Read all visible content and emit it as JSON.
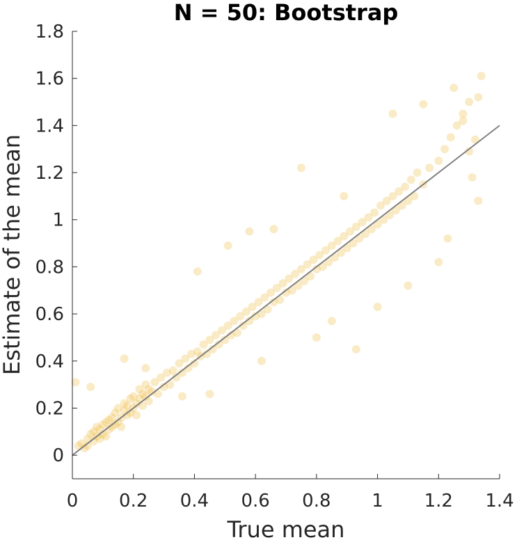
{
  "chart_data": {
    "type": "scatter",
    "title": "N = 50: Bootstrap",
    "xlabel": "True mean",
    "ylabel": "Estimate of the mean",
    "xlim": [
      0,
      1.4
    ],
    "ylim": [
      -0.1,
      1.8
    ],
    "xticks": [
      0,
      0.2,
      0.4,
      0.6,
      0.8,
      1,
      1.2,
      1.4
    ],
    "xtick_labels": [
      "0",
      "0.2",
      "0.4",
      "0.6",
      "0.8",
      "1",
      "1.2",
      "1.4"
    ],
    "yticks": [
      0,
      0.2,
      0.4,
      0.6,
      0.8,
      1,
      1.2,
      1.4,
      1.6,
      1.8
    ],
    "ytick_labels": [
      "0",
      "0.2",
      "0.4",
      "0.6",
      "0.8",
      "1",
      "1.2",
      "1.4",
      "1.6",
      "1.8"
    ],
    "grid": false,
    "point_color": "#EDB120",
    "point_opacity": 0.25,
    "reference_line": {
      "label": "identity y = x",
      "color": "#808080",
      "from": [
        0,
        0
      ],
      "to": [
        1.4,
        1.4
      ]
    },
    "series": [
      {
        "values": [
          [
            0.02,
            0.04
          ],
          [
            0.03,
            0.05
          ],
          [
            0.04,
            0.03
          ],
          [
            0.05,
            0.07
          ],
          [
            0.05,
            0.04
          ],
          [
            0.06,
            0.09
          ],
          [
            0.07,
            0.06
          ],
          [
            0.07,
            0.1
          ],
          [
            0.08,
            0.08
          ],
          [
            0.08,
            0.12
          ],
          [
            0.09,
            0.07
          ],
          [
            0.09,
            0.11
          ],
          [
            0.1,
            0.13
          ],
          [
            0.1,
            0.09
          ],
          [
            0.11,
            0.14
          ],
          [
            0.11,
            0.08
          ],
          [
            0.12,
            0.15
          ],
          [
            0.12,
            0.11
          ],
          [
            0.13,
            0.16
          ],
          [
            0.13,
            0.12
          ],
          [
            0.14,
            0.13
          ],
          [
            0.14,
            0.18
          ],
          [
            0.15,
            0.14
          ],
          [
            0.15,
            0.2
          ],
          [
            0.16,
            0.16
          ],
          [
            0.16,
            0.12
          ],
          [
            0.17,
            0.19
          ],
          [
            0.17,
            0.22
          ],
          [
            0.18,
            0.17
          ],
          [
            0.18,
            0.21
          ],
          [
            0.19,
            0.18
          ],
          [
            0.19,
            0.24
          ],
          [
            0.2,
            0.2
          ],
          [
            0.2,
            0.25
          ],
          [
            0.21,
            0.22
          ],
          [
            0.21,
            0.17
          ],
          [
            0.22,
            0.24
          ],
          [
            0.22,
            0.28
          ],
          [
            0.23,
            0.21
          ],
          [
            0.23,
            0.26
          ],
          [
            0.24,
            0.25
          ],
          [
            0.24,
            0.3
          ],
          [
            0.25,
            0.23
          ],
          [
            0.25,
            0.28
          ],
          [
            0.26,
            0.27
          ],
          [
            0.27,
            0.31
          ],
          [
            0.28,
            0.26
          ],
          [
            0.29,
            0.33
          ],
          [
            0.3,
            0.29
          ],
          [
            0.31,
            0.35
          ],
          [
            0.32,
            0.3
          ],
          [
            0.33,
            0.36
          ],
          [
            0.34,
            0.33
          ],
          [
            0.35,
            0.39
          ],
          [
            0.36,
            0.35
          ],
          [
            0.37,
            0.41
          ],
          [
            0.38,
            0.37
          ],
          [
            0.39,
            0.43
          ],
          [
            0.4,
            0.39
          ],
          [
            0.41,
            0.44
          ],
          [
            0.42,
            0.42
          ],
          [
            0.43,
            0.47
          ],
          [
            0.44,
            0.43
          ],
          [
            0.45,
            0.49
          ],
          [
            0.46,
            0.45
          ],
          [
            0.47,
            0.51
          ],
          [
            0.48,
            0.47
          ],
          [
            0.49,
            0.53
          ],
          [
            0.5,
            0.49
          ],
          [
            0.51,
            0.55
          ],
          [
            0.52,
            0.51
          ],
          [
            0.53,
            0.57
          ],
          [
            0.54,
            0.52
          ],
          [
            0.55,
            0.59
          ],
          [
            0.56,
            0.55
          ],
          [
            0.57,
            0.61
          ],
          [
            0.58,
            0.57
          ],
          [
            0.59,
            0.63
          ],
          [
            0.6,
            0.59
          ],
          [
            0.61,
            0.65
          ],
          [
            0.62,
            0.6
          ],
          [
            0.63,
            0.67
          ],
          [
            0.64,
            0.62
          ],
          [
            0.65,
            0.69
          ],
          [
            0.66,
            0.65
          ],
          [
            0.67,
            0.71
          ],
          [
            0.68,
            0.66
          ],
          [
            0.69,
            0.73
          ],
          [
            0.7,
            0.69
          ],
          [
            0.71,
            0.75
          ],
          [
            0.72,
            0.7
          ],
          [
            0.73,
            0.77
          ],
          [
            0.74,
            0.72
          ],
          [
            0.75,
            0.79
          ],
          [
            0.76,
            0.74
          ],
          [
            0.77,
            0.81
          ],
          [
            0.78,
            0.76
          ],
          [
            0.79,
            0.83
          ],
          [
            0.8,
            0.79
          ],
          [
            0.81,
            0.85
          ],
          [
            0.82,
            0.8
          ],
          [
            0.83,
            0.87
          ],
          [
            0.84,
            0.82
          ],
          [
            0.85,
            0.89
          ],
          [
            0.86,
            0.84
          ],
          [
            0.87,
            0.91
          ],
          [
            0.88,
            0.86
          ],
          [
            0.89,
            0.93
          ],
          [
            0.9,
            0.88
          ],
          [
            0.91,
            0.95
          ],
          [
            0.92,
            0.9
          ],
          [
            0.93,
            0.97
          ],
          [
            0.94,
            0.92
          ],
          [
            0.95,
            0.99
          ],
          [
            0.96,
            0.94
          ],
          [
            0.97,
            1.01
          ],
          [
            0.98,
            0.96
          ],
          [
            0.99,
            1.03
          ],
          [
            1.0,
            0.98
          ],
          [
            1.01,
            1.06
          ],
          [
            1.02,
            1.0
          ],
          [
            1.03,
            1.08
          ],
          [
            1.04,
            1.02
          ],
          [
            1.05,
            1.1
          ],
          [
            1.06,
            1.04
          ],
          [
            1.07,
            1.12
          ],
          [
            1.08,
            1.06
          ],
          [
            1.09,
            1.14
          ],
          [
            1.1,
            1.08
          ],
          [
            1.11,
            1.17
          ],
          [
            1.12,
            1.1
          ],
          [
            1.13,
            1.2
          ],
          [
            1.15,
            1.15
          ],
          [
            1.17,
            1.22
          ],
          [
            1.2,
            1.25
          ],
          [
            1.22,
            1.3
          ],
          [
            1.24,
            1.35
          ],
          [
            1.26,
            1.4
          ],
          [
            1.28,
            1.45
          ],
          [
            1.3,
            1.5
          ],
          [
            1.33,
            1.52
          ],
          [
            1.34,
            1.61
          ],
          [
            1.31,
            1.18
          ],
          [
            1.33,
            1.08
          ],
          [
            0.01,
            0.31
          ],
          [
            0.06,
            0.29
          ],
          [
            0.17,
            0.41
          ],
          [
            0.24,
            0.37
          ],
          [
            0.36,
            0.25
          ],
          [
            0.41,
            0.78
          ],
          [
            0.45,
            0.26
          ],
          [
            0.51,
            0.89
          ],
          [
            0.58,
            0.95
          ],
          [
            0.62,
            0.4
          ],
          [
            0.66,
            0.96
          ],
          [
            0.75,
            1.22
          ],
          [
            0.8,
            0.5
          ],
          [
            0.85,
            0.57
          ],
          [
            0.89,
            1.1
          ],
          [
            0.93,
            0.45
          ],
          [
            1.0,
            0.63
          ],
          [
            1.05,
            1.45
          ],
          [
            1.1,
            0.72
          ],
          [
            1.15,
            1.49
          ],
          [
            1.2,
            0.82
          ],
          [
            1.23,
            0.92
          ],
          [
            1.25,
            1.56
          ],
          [
            1.28,
            1.42
          ],
          [
            1.3,
            1.29
          ],
          [
            1.32,
            1.34
          ]
        ]
      }
    ]
  }
}
